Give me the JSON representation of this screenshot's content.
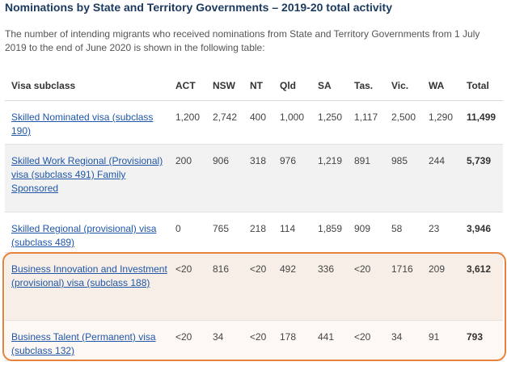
{
  "header": {
    "title": "Nominations by State and Territory Governments – 2019-20 total activity",
    "intro": "The number of intending migrants who received nominations from State and Territory Governments from 1 July 2019 to the end of June 2020 is shown in the following table:"
  },
  "table": {
    "columns": [
      "Visa subclass",
      "ACT",
      "NSW",
      "NT",
      "Qld",
      "SA",
      "Tas.",
      "Vic.",
      "WA",
      "Total"
    ],
    "rows": [
      [
        "Skilled Nominated visa (subclass 190)",
        "1,200",
        "2,742",
        "400",
        "1,000",
        "1,250",
        "1,117",
        "2,500",
        "1,290",
        "11,499"
      ],
      [
        "Skilled Work Regional (Provisional) visa (subclass 491) Family Sponsored",
        "200",
        "906",
        "318",
        "976",
        "1,219",
        "891",
        "985",
        "244",
        "5,739"
      ],
      [
        "Skilled Regional (provisional) visa (subclass 489)",
        "0",
        "765",
        "218",
        "114",
        "1,859",
        "909",
        "58",
        "23",
        "3,946"
      ],
      [
        "Business Innovation and Investment (provisional) visa (subclass 188)",
        "<20",
        "816",
        "<20",
        "492",
        "336",
        "<20",
        "1716",
        "209",
        "3,612"
      ],
      [
        "Business Talent (Permanent) visa (subclass 132)",
        "<20",
        "34",
        "<20",
        "178",
        "441",
        "<20",
        "34",
        "91",
        "793"
      ]
    ]
  }
}
